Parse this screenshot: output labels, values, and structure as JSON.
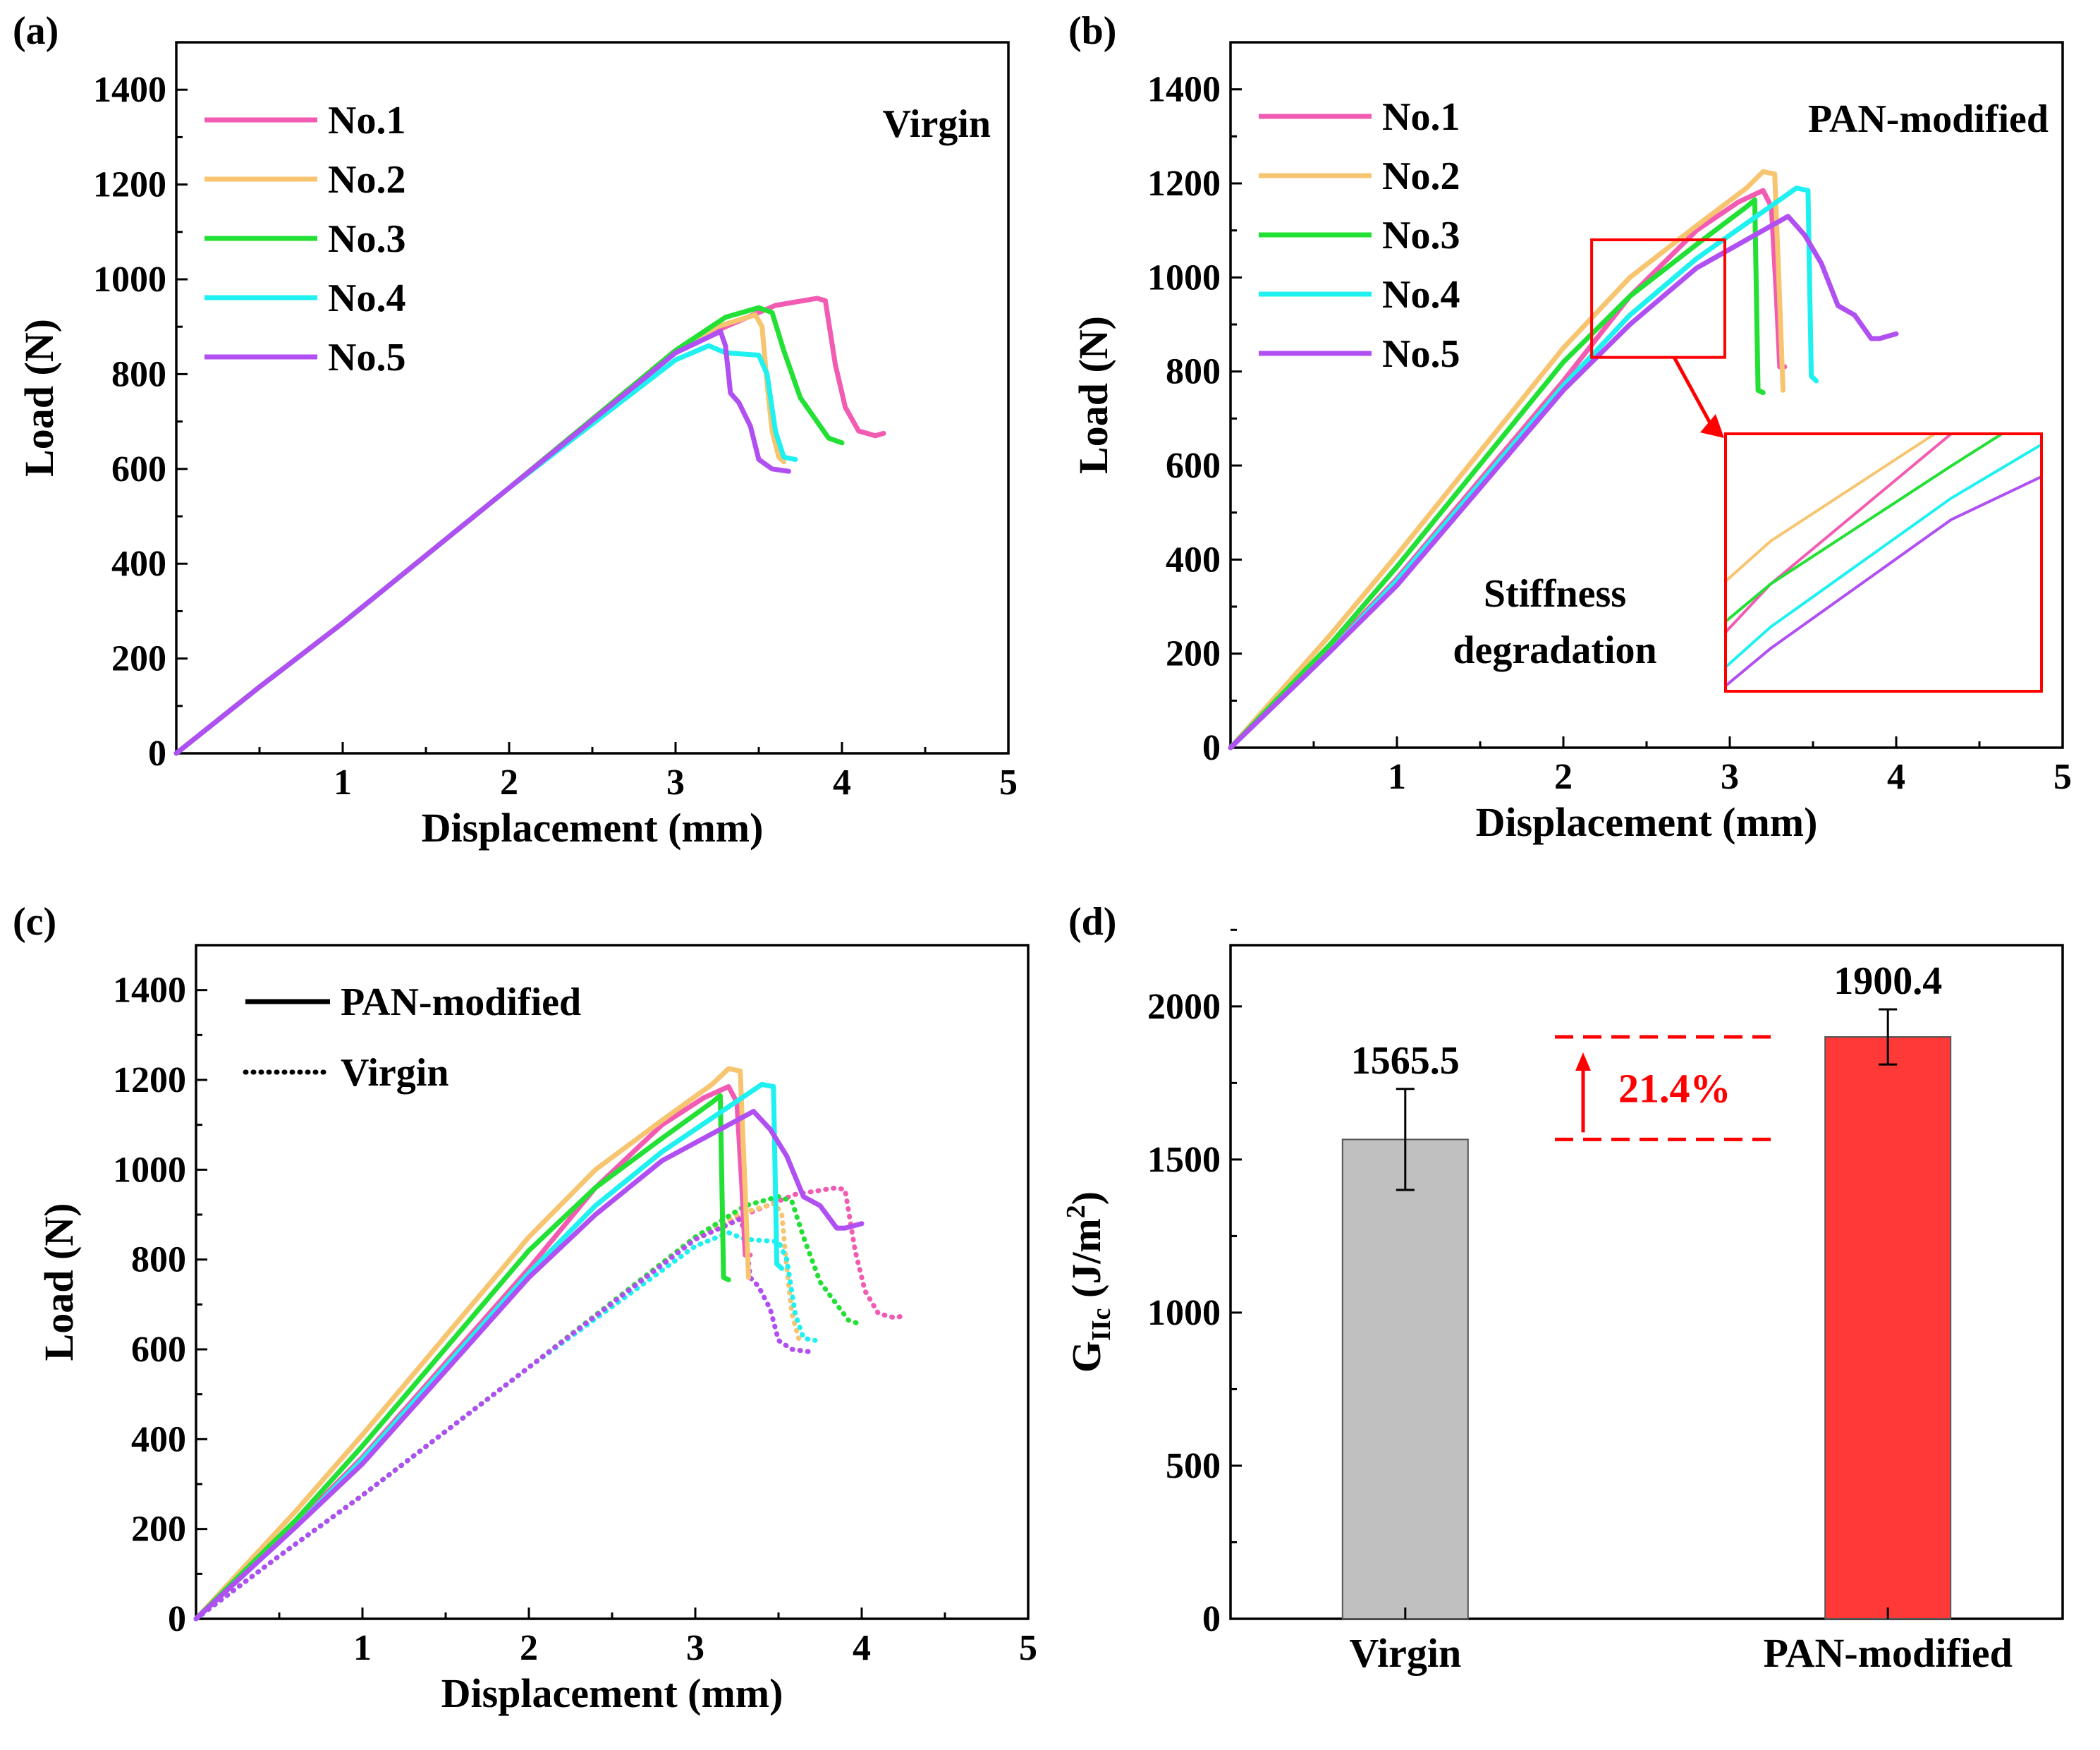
{
  "figure": {
    "panel_labels": [
      "(a)",
      "(b)",
      "(c)",
      "(d)"
    ],
    "colors": {
      "No.1": "#f25bb2",
      "No.2": "#f7c56f",
      "No.3": "#22e034",
      "No.4": "#1ff0f0",
      "No.5": "#b04ff2",
      "virgin_bar": "#c0c0c0",
      "pan_bar": "#ff3838",
      "annotation": "#ff0000"
    }
  },
  "chart_data": [
    {
      "panel": "(a)",
      "type": "line",
      "xlabel": "Displacement (mm)",
      "ylabel": "Load (N)",
      "xlim": [
        0,
        5
      ],
      "ylim": [
        0,
        1500
      ],
      "xticks": [
        "1",
        "2",
        "3",
        "4",
        "5"
      ],
      "yticks": [
        "0",
        "200",
        "400",
        "600",
        "800",
        "1000",
        "1200",
        "1400"
      ],
      "annotation": "Virgin",
      "legend": "top-left",
      "series": [
        {
          "name": "No.1",
          "color": "#f25bb2",
          "x": [
            0,
            0.5,
            1,
            2,
            3,
            3.3,
            3.6,
            3.85,
            3.9,
            3.96,
            4.02,
            4.1,
            4.2,
            4.25
          ],
          "y": [
            0,
            140,
            275,
            560,
            850,
            900,
            945,
            960,
            955,
            820,
            730,
            680,
            670,
            675
          ]
        },
        {
          "name": "No.2",
          "color": "#f7c56f",
          "x": [
            0,
            0.5,
            1,
            2,
            3,
            3.25,
            3.48,
            3.52,
            3.55,
            3.58,
            3.62,
            3.65
          ],
          "y": [
            0,
            140,
            275,
            560,
            850,
            900,
            925,
            900,
            780,
            680,
            625,
            615
          ]
        },
        {
          "name": "No.3",
          "color": "#22e034",
          "x": [
            0,
            0.5,
            1,
            2,
            3,
            3.3,
            3.5,
            3.58,
            3.65,
            3.75,
            3.85,
            3.92,
            4.0
          ],
          "y": [
            0,
            140,
            275,
            560,
            850,
            920,
            940,
            930,
            850,
            750,
            700,
            665,
            655
          ]
        },
        {
          "name": "No.4",
          "color": "#1ff0f0",
          "x": [
            0,
            0.5,
            1,
            2,
            3,
            3.2,
            3.3,
            3.5,
            3.55,
            3.6,
            3.65,
            3.72
          ],
          "y": [
            0,
            140,
            275,
            560,
            830,
            860,
            845,
            840,
            800,
            680,
            625,
            620
          ]
        },
        {
          "name": "No.5",
          "color": "#b04ff2",
          "x": [
            0,
            0.5,
            1,
            2,
            3,
            3.27,
            3.3,
            3.33,
            3.38,
            3.45,
            3.5,
            3.58,
            3.68
          ],
          "y": [
            0,
            140,
            275,
            560,
            845,
            890,
            860,
            760,
            740,
            690,
            620,
            600,
            595
          ]
        }
      ]
    },
    {
      "panel": "(b)",
      "type": "line",
      "xlabel": "Displacement (mm)",
      "ylabel": "Load (N)",
      "xlim": [
        0,
        5
      ],
      "ylim": [
        0,
        1500
      ],
      "xticks": [
        "1",
        "2",
        "3",
        "4",
        "5"
      ],
      "yticks": [
        "0",
        "200",
        "400",
        "600",
        "800",
        "1000",
        "1200",
        "1400"
      ],
      "annotation": "PAN-modified",
      "inset_annotation": [
        "Stiffness",
        "degradation"
      ],
      "inset_region": {
        "x": [
          2.17,
          2.97
        ],
        "y": [
          830,
          1080
        ]
      },
      "legend": "top-left",
      "series": [
        {
          "name": "No.1",
          "color": "#f25bb2",
          "x": [
            0,
            0.6,
            1,
            2,
            2.4,
            2.8,
            3.05,
            3.2,
            3.25,
            3.28,
            3.3,
            3.33
          ],
          "y": [
            0,
            210,
            360,
            780,
            960,
            1100,
            1160,
            1185,
            1150,
            960,
            810,
            810
          ]
        },
        {
          "name": "No.2",
          "color": "#f7c56f",
          "x": [
            0,
            0.6,
            1,
            2,
            2.4,
            2.8,
            3.1,
            3.2,
            3.27,
            3.3,
            3.32
          ],
          "y": [
            0,
            240,
            410,
            850,
            1000,
            1110,
            1190,
            1225,
            1220,
            950,
            760
          ]
        },
        {
          "name": "No.3",
          "color": "#22e034",
          "x": [
            0,
            0.6,
            1,
            2,
            2.4,
            2.8,
            3.1,
            3.15,
            3.17,
            3.2
          ],
          "y": [
            0,
            220,
            385,
            820,
            960,
            1070,
            1150,
            1165,
            760,
            755
          ]
        },
        {
          "name": "No.4",
          "color": "#1ff0f0",
          "x": [
            0,
            0.6,
            1,
            2,
            2.4,
            2.8,
            3.2,
            3.4,
            3.47,
            3.49,
            3.52
          ],
          "y": [
            0,
            205,
            355,
            770,
            920,
            1040,
            1140,
            1190,
            1185,
            790,
            780
          ]
        },
        {
          "name": "No.5",
          "color": "#b04ff2",
          "x": [
            0,
            0.6,
            1,
            2,
            2.4,
            2.8,
            3.2,
            3.35,
            3.45,
            3.55,
            3.65,
            3.75,
            3.85,
            3.9,
            4.0
          ],
          "y": [
            0,
            205,
            345,
            760,
            900,
            1020,
            1100,
            1130,
            1090,
            1030,
            940,
            920,
            870,
            870,
            880
          ]
        }
      ]
    },
    {
      "panel": "(c)",
      "type": "line",
      "xlabel": "Displacement (mm)",
      "ylabel": "Load (N)",
      "xlim": [
        0,
        5
      ],
      "ylim": [
        0,
        1500
      ],
      "xticks": [
        "1",
        "2",
        "3",
        "4",
        "5"
      ],
      "yticks": [
        "0",
        "200",
        "400",
        "600",
        "800",
        "1000",
        "1200",
        "1400"
      ],
      "legend": "top-left",
      "legend_entries": [
        {
          "label": "PAN-modified",
          "style": "solid"
        },
        {
          "label": "Virgin",
          "style": "dotted"
        }
      ],
      "note": "Overlay of panel (a) curves (dotted) and panel (b) curves (solid)"
    },
    {
      "panel": "(d)",
      "type": "bar",
      "ylabel_main": "G",
      "ylabel_sub": "IIc",
      "ylabel_unit": " (J/m",
      "ylabel_sup": "2",
      "ylabel_end": ")",
      "ylim": [
        0,
        2200
      ],
      "yticks": [
        "0",
        "500",
        "1000",
        "1500",
        "2000"
      ],
      "categories": [
        "Virgin",
        "PAN-modified"
      ],
      "values": [
        1565.5,
        1900.4
      ],
      "value_labels": [
        "1565.5",
        "1900.4"
      ],
      "errors": [
        165,
        90
      ],
      "colors": [
        "#c0c0c0",
        "#ff3838"
      ],
      "increase_label": "21.4%"
    }
  ]
}
